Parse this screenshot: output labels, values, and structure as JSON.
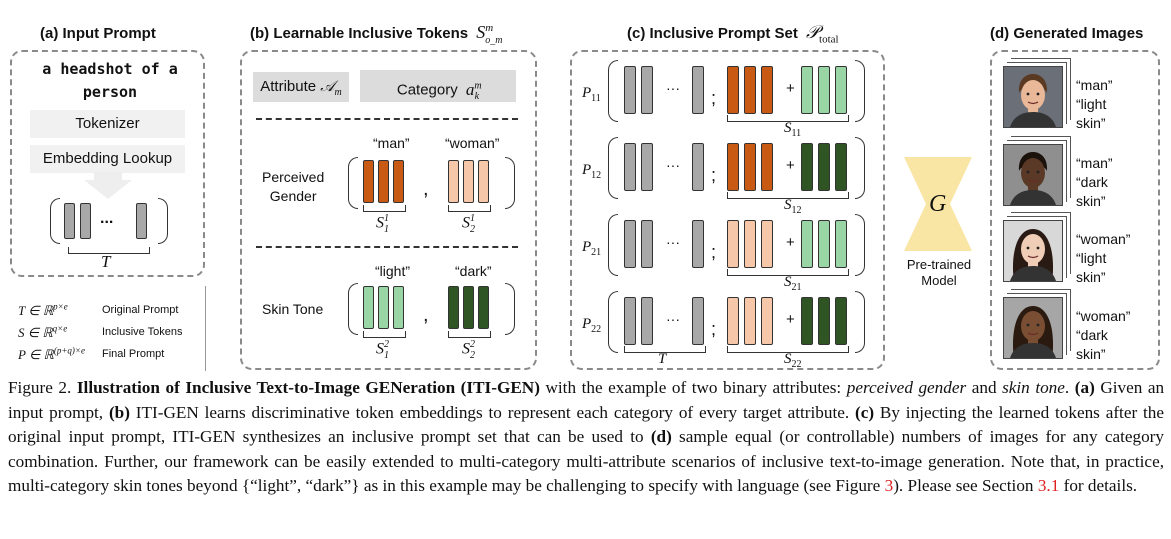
{
  "panel_a": {
    "title": "(a) Input Prompt",
    "prompt": "a headshot of a person",
    "tokenizer": "Tokenizer",
    "embedding": "Embedding Lookup",
    "dots": "...",
    "T_label": "T",
    "legend": [
      {
        "sym": "T ∈ ℝ",
        "sup": "p×e",
        "desc": "Original Prompt"
      },
      {
        "sym": "S ∈ ℝ",
        "sup": "q×e",
        "desc": "Inclusive Tokens"
      },
      {
        "sym": "P ∈ ℝ",
        "sup": "(p+q)×e",
        "desc": "Final Prompt"
      }
    ]
  },
  "panel_b": {
    "title": "(b) Learnable Inclusive Tokens",
    "title_math": "S",
    "title_sup": "m",
    "title_sub": "o_m",
    "attr_label": "Attribute",
    "attr_math": "𝒜",
    "attr_sub": "m",
    "cat_label": "Category",
    "cat_math": "a",
    "cat_sup": "m",
    "cat_sub": "k",
    "gender": {
      "label_1": "Perceived",
      "label_2": "Gender",
      "q1": "“man”",
      "q2": "“woman”",
      "s1": "S",
      "s1_sup": "1",
      "s1_sub": "1",
      "s2": "S",
      "s2_sup": "1",
      "s2_sub": "2"
    },
    "skin": {
      "label": "Skin Tone",
      "q1": "“light”",
      "q2": "“dark”",
      "s1": "S",
      "s1_sup": "2",
      "s1_sub": "1",
      "s2": "S",
      "s2_sup": "2",
      "s2_sub": "2"
    },
    "comma": ","
  },
  "panel_c": {
    "title": "(c) Inclusive Prompt Set",
    "title_math": "𝒫",
    "title_sub": "total",
    "rows": [
      {
        "p": "P",
        "p_sub": "11",
        "s": "S",
        "s_sub": "11"
      },
      {
        "p": "P",
        "p_sub": "12",
        "s": "S",
        "s_sub": "12"
      },
      {
        "p": "P",
        "p_sub": "21",
        "s": "S",
        "s_sub": "21"
      },
      {
        "p": "P",
        "p_sub": "22",
        "s": "S",
        "s_sub": "22"
      }
    ],
    "T_label": "T",
    "dots": "···",
    "semicolon": ";",
    "plus": "+"
  },
  "generator": {
    "symbol": "G",
    "label_1": "Pre-trained",
    "label_2": "Model"
  },
  "panel_d": {
    "title": "(d) Generated Images",
    "items": [
      {
        "l1": "“man”",
        "l2": "“light skin”"
      },
      {
        "l1": "“man”",
        "l2": "“dark skin”"
      },
      {
        "l1": "“woman”",
        "l2": "“light skin”"
      },
      {
        "l1": "“woman”",
        "l2": "“dark skin”"
      }
    ]
  },
  "caption": {
    "fig": "Figure 2.",
    "bold_title": "Illustration of Inclusive Text-to-Image GENeration (ITI-GEN)",
    "t1": "with the example of two binary attributes:",
    "em1": "perceived gender",
    "t2": "and",
    "em2": "skin tone",
    "t3": ".",
    "a": "(a)",
    "t4": "Given an input prompt,",
    "b": "(b)",
    "t5": "ITI-GEN learns discriminative token embeddings to represent each category of every target attribute.",
    "c": "(c)",
    "t6": "By injecting the learned tokens after the original input prompt, ITI-GEN synthesizes an inclusive prompt set that can be used to",
    "d": "(d)",
    "t7": "sample equal (or controllable) numbers of images for any category combination. Further, our framework can be easily extended to multi-category multi-attribute scenarios of inclusive text-to-image generation. Note that, in practice, multi-category skin tones beyond {“light”, “dark”} as in this example may be challenging to specify with language (see Figure",
    "ref1": "3",
    "t8": "). Please see Section",
    "ref2": "3.1",
    "t9": "for details."
  },
  "colors": {
    "gray_token": "#a8a8a8",
    "man_token": "#c95a14",
    "woman_token": "#f6c7a8",
    "light_token": "#9ad6a5",
    "dark_token": "#2f5524",
    "generator": "#f9e6a4",
    "ref_red": "#e02020"
  }
}
